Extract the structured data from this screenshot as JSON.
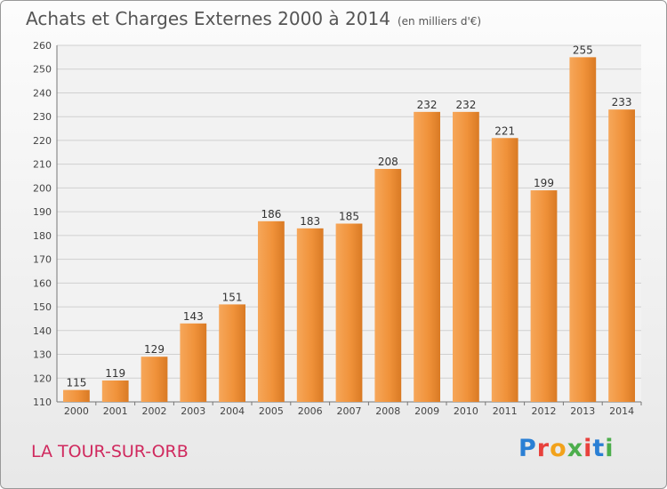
{
  "chart_data": {
    "type": "bar",
    "title": "Achats et Charges Externes 2000 à 2014",
    "subtitle": "(en milliers d'€)",
    "categories": [
      "2000",
      "2001",
      "2002",
      "2003",
      "2004",
      "2005",
      "2006",
      "2007",
      "2008",
      "2009",
      "2010",
      "2011",
      "2012",
      "2013",
      "2014"
    ],
    "values": [
      115,
      119,
      129,
      143,
      151,
      186,
      183,
      185,
      208,
      232,
      232,
      221,
      199,
      255,
      233
    ],
    "xlabel": "",
    "ylabel": "",
    "ylim": [
      110,
      260
    ],
    "yticks": [
      110,
      120,
      130,
      140,
      150,
      160,
      170,
      180,
      190,
      200,
      210,
      220,
      230,
      240,
      250,
      260
    ],
    "grid": true,
    "bar_color": "#f0923a"
  },
  "footer": {
    "place": "LA TOUR-SUR-ORB",
    "logo_text": "Proxiti",
    "logo_colors": [
      "#2a7fd4",
      "#e8413c",
      "#f2a21b",
      "#4cae4c",
      "#e8413c",
      "#2a7fd4",
      "#4cae4c"
    ]
  }
}
